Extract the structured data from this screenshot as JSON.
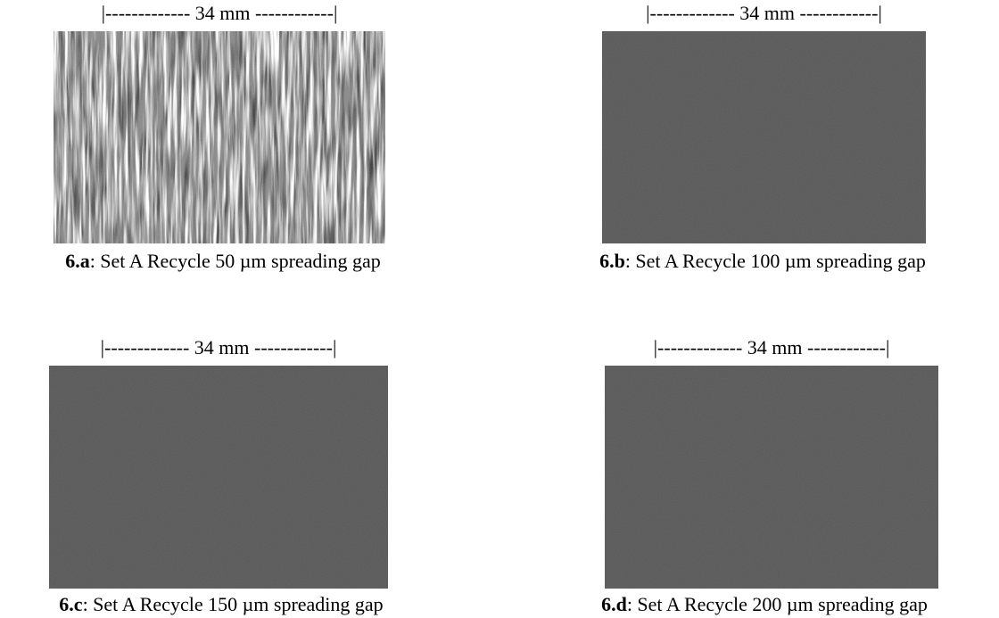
{
  "panels": [
    {
      "scale": "|------------- 34 mm ------------|",
      "label": "6.a",
      "caption": ": Set A Recycle 50 µm spreading gap"
    },
    {
      "scale": "|------------- 34 mm ------------|",
      "label": "6.b",
      "caption": ": Set A Recycle 100 µm spreading gap"
    },
    {
      "scale": "|------------- 34 mm ------------|",
      "label": "6.c",
      "caption": ": Set A Recycle 150 µm spreading gap"
    },
    {
      "scale": "|------------- 34 mm ------------|",
      "label": "6.d",
      "caption": ": Set A Recycle 200 µm spreading gap"
    }
  ]
}
